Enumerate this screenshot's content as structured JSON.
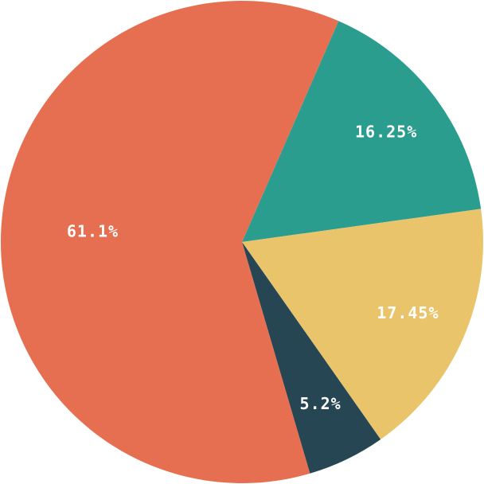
{
  "chart_data": {
    "type": "pie",
    "values": [
      16.25,
      17.45,
      5.2,
      61.1
    ],
    "value_labels": [
      "16.25%",
      "17.45%",
      "5.2%",
      "61.1%"
    ],
    "colors": [
      "#2a9d8f",
      "#e9c46a",
      "#264653",
      "#e76f51"
    ]
  }
}
